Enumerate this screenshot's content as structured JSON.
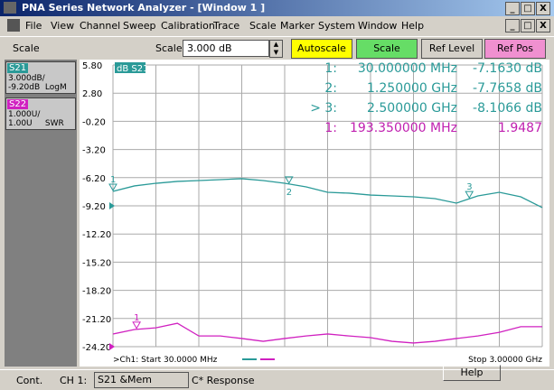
{
  "window": {
    "title": "PNA Series Network Analyzer - [Window 1 ]",
    "buttons": [
      "_",
      "□",
      "X"
    ]
  },
  "menu": {
    "items": [
      "File",
      "View",
      "Channel",
      "Sweep",
      "Calibration",
      "Trace",
      "Scale",
      "Marker",
      "System",
      "Window",
      "Help"
    ]
  },
  "toolbar": {
    "name": "Scale",
    "field_label": "Scale",
    "field_value": "3.000 dB",
    "buttons": [
      "Autoscale",
      "Scale",
      "Ref Level",
      "Ref Pos"
    ]
  },
  "channels": [
    {
      "name": "S21",
      "lines": [
        "3.000dB/",
        "-9.20dB  LogM"
      ]
    },
    {
      "name": "S22",
      "lines": [
        "1.000U/",
        "1.00U     SWR"
      ]
    }
  ],
  "plot": {
    "trace_label": "dB S21",
    "y_labels": [
      "5.80",
      "2.80",
      "-0.20",
      "-3.20",
      "-6.20",
      "-9.20",
      "-12.20",
      "-15.20",
      "-18.20",
      "-21.20",
      "-24.20"
    ],
    "readouts": [
      {
        "marker": "1:",
        "freq": "30.000000 MHz",
        "value": "-7.1630 dB",
        "color": "#2a9a98"
      },
      {
        "marker": "2:",
        "freq": "1.250000 GHz",
        "value": "-7.7658 dB",
        "color": "#2a9a98"
      },
      {
        "marker": "> 3:",
        "freq": "2.500000 GHz",
        "value": "-8.1066 dB",
        "color": "#2a9a98"
      },
      {
        "marker": "1:",
        "freq": "193.350000 MHz",
        "value": "1.9487",
        "color": "#c020b0"
      }
    ],
    "traces": [
      {
        "color": "#2a9a98",
        "ref": -9.2,
        "per_div": 3,
        "ref_div": 5,
        "values": [
          -7.66,
          -7.08,
          -6.8,
          -6.6,
          -6.51,
          -6.41,
          -6.31,
          -6.51,
          -6.8,
          -7.18,
          -7.76,
          -7.85,
          -8.05,
          -8.14,
          -8.24,
          -8.43,
          -8.91,
          -8.14,
          -7.76,
          -8.24,
          -9.39
        ]
      },
      {
        "color": "#d020c0",
        "ref": 1.0,
        "per_div": 1,
        "ref_div": 10,
        "values": [
          1.45,
          1.61,
          1.67,
          1.83,
          1.38,
          1.38,
          1.29,
          1.19,
          1.29,
          1.38,
          1.45,
          1.38,
          1.32,
          1.19,
          1.13,
          1.19,
          1.29,
          1.38,
          1.51,
          1.71,
          1.71
        ]
      }
    ],
    "markers": [
      {
        "label": "1",
        "trace": 0,
        "pos": 0
      },
      {
        "label": "2",
        "trace": 0,
        "pos": 8.2
      },
      {
        "label": "3",
        "trace": 0,
        "pos": 16.6
      },
      {
        "label": "1",
        "trace": 1,
        "pos": 1.1
      }
    ],
    "start": ">Ch1: Start  30.0000 MHz",
    "stop": "Stop  3.00000 GHz"
  },
  "status": {
    "mode": "Cont.",
    "channel": "CH 1:",
    "measurement": "S21 &Mem",
    "response": "C* Response",
    "help": "Help"
  }
}
